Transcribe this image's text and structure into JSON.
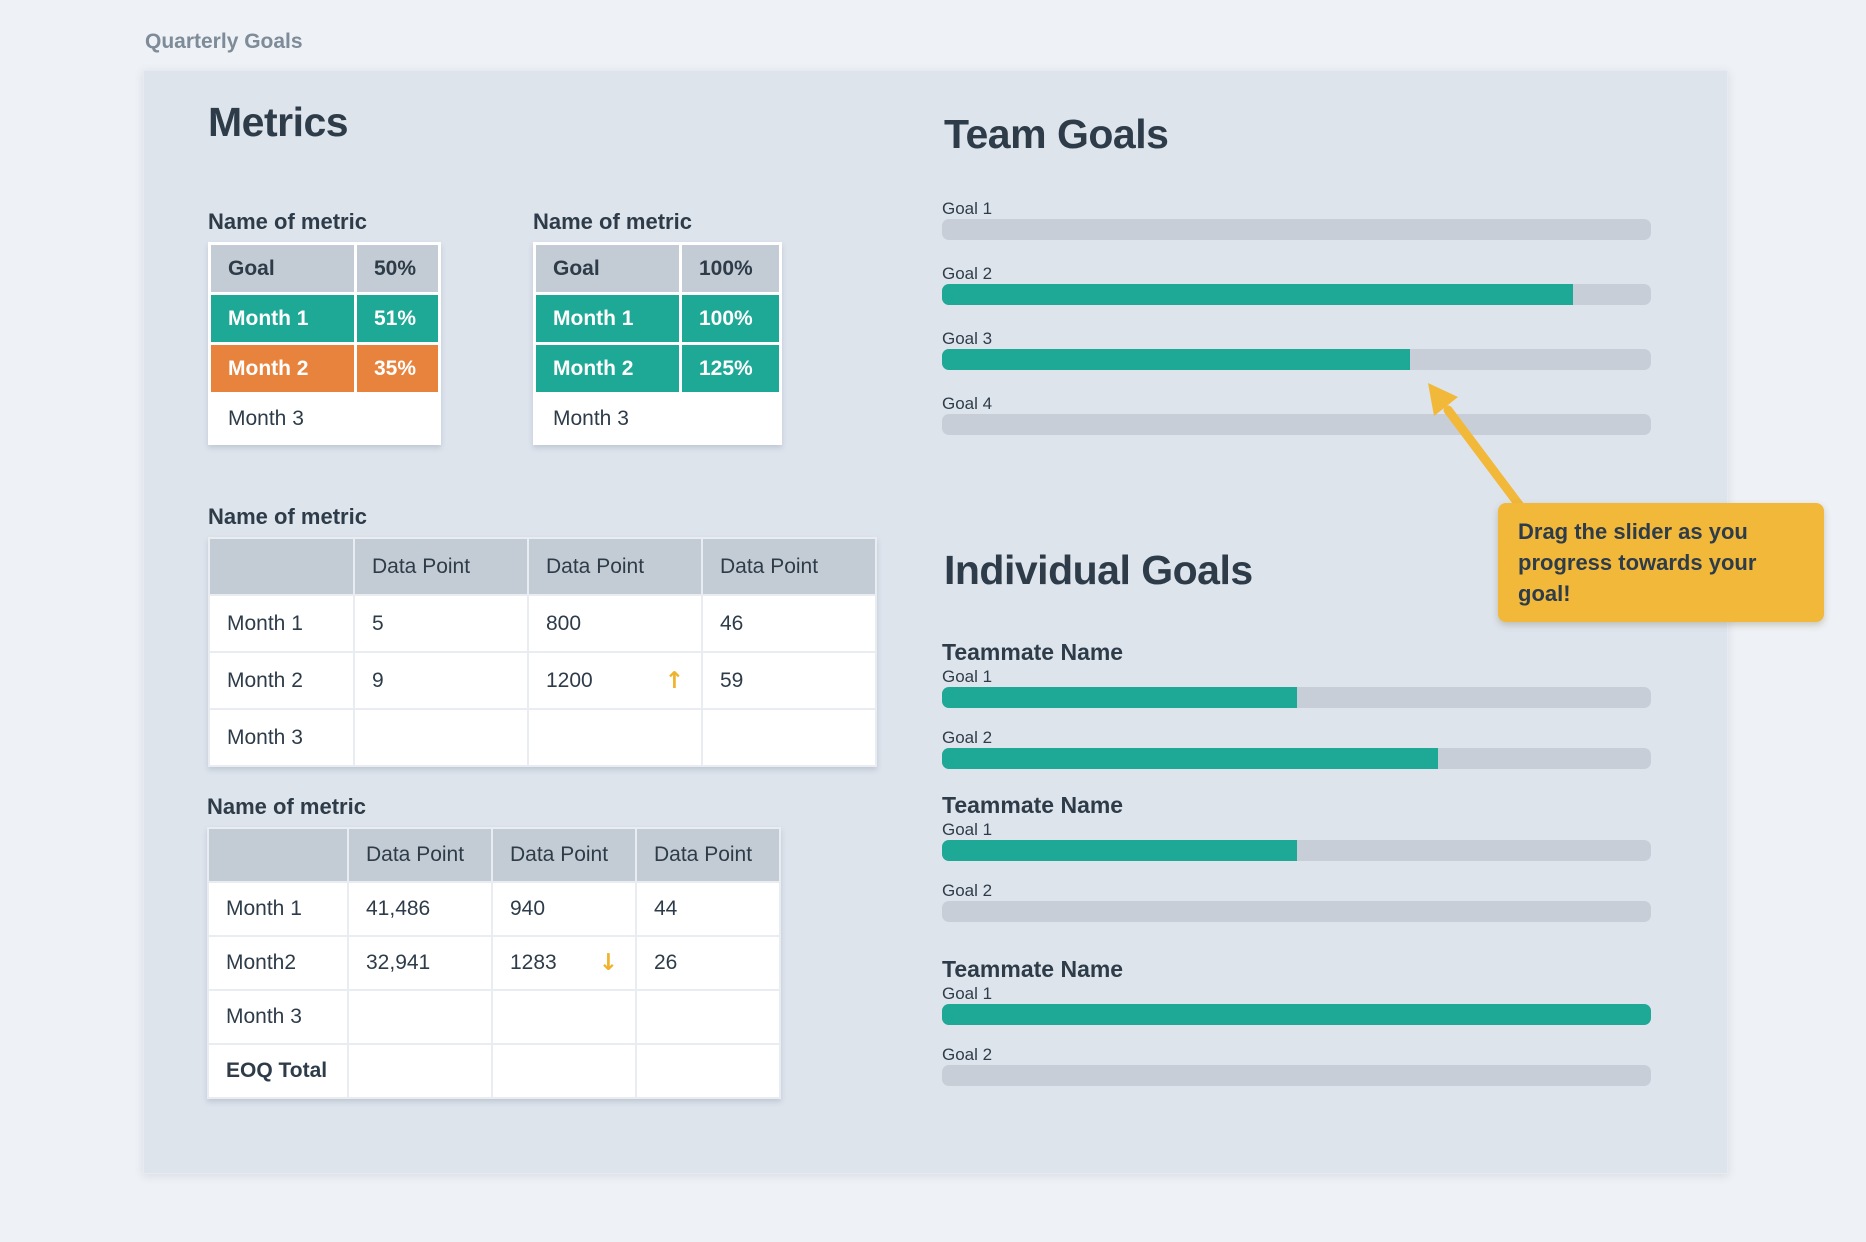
{
  "page": {
    "board_label": "Quarterly Goals"
  },
  "colors": {
    "page_bg": "#eef1f5",
    "card_bg": "#dee4ec",
    "navy_text": "#2e3c4a",
    "teal": "#1ea896",
    "orange": "#e8833e",
    "header_cell_gray": "#c3ccd4",
    "bar_track_gray": "#c7ced8",
    "annotation_yellow": "#f2b83a",
    "trend_arrow_yellow": "#f0b32c"
  },
  "metrics": {
    "heading": "Metrics",
    "goal_tables": [
      {
        "title": "Name of metric",
        "header_label": "Goal",
        "header_value": "50%",
        "rows": [
          {
            "label": "Month 1",
            "value": "51%",
            "status": "teal"
          },
          {
            "label": "Month 2",
            "value": "35%",
            "status": "orange"
          },
          {
            "label": "Month 3",
            "value": "",
            "status": "plain"
          }
        ]
      },
      {
        "title": "Name of metric",
        "header_label": "Goal",
        "header_value": "100%",
        "rows": [
          {
            "label": "Month 1",
            "value": "100%",
            "status": "teal"
          },
          {
            "label": "Month 2",
            "value": "125%",
            "status": "teal"
          },
          {
            "label": "Month 3",
            "value": "",
            "status": "plain"
          }
        ]
      }
    ],
    "data_tables": [
      {
        "title": "Name of metric",
        "columns": [
          "",
          "Data Point",
          "Data Point",
          "Data Point"
        ],
        "rows": [
          {
            "label": "Month 1",
            "values": [
              "5",
              "800",
              "46"
            ],
            "trends": [
              "",
              "",
              ""
            ],
            "bold": false
          },
          {
            "label": "Month 2",
            "values": [
              "9",
              "1200",
              "59"
            ],
            "trends": [
              "",
              "up",
              ""
            ],
            "bold": false
          },
          {
            "label": "Month 3",
            "values": [
              "",
              "",
              ""
            ],
            "trends": [
              "",
              "",
              ""
            ],
            "bold": false
          }
        ]
      },
      {
        "title": "Name of metric",
        "columns": [
          "",
          "Data Point",
          "Data Point",
          "Data Point"
        ],
        "rows": [
          {
            "label": "Month 1",
            "values": [
              "41,486",
              "940",
              "44"
            ],
            "trends": [
              "",
              "",
              ""
            ],
            "bold": false
          },
          {
            "label": "Month2",
            "values": [
              "32,941",
              "1283",
              "26"
            ],
            "trends": [
              "",
              "down",
              ""
            ],
            "bold": false
          },
          {
            "label": "Month 3",
            "values": [
              "",
              "",
              ""
            ],
            "trends": [
              "",
              "",
              ""
            ],
            "bold": false
          },
          {
            "label": "EOQ Total",
            "values": [
              "",
              "",
              ""
            ],
            "trends": [
              "",
              "",
              ""
            ],
            "bold": true
          }
        ]
      }
    ]
  },
  "team_goals": {
    "heading": "Team Goals",
    "goals": [
      {
        "label": "Goal 1",
        "progress": 0
      },
      {
        "label": "Goal 2",
        "progress": 89
      },
      {
        "label": "Goal 3",
        "progress": 66
      },
      {
        "label": "Goal 4",
        "progress": 0
      }
    ]
  },
  "individual_goals": {
    "heading": "Individual Goals",
    "teammates": [
      {
        "name": "Teammate Name",
        "goals": [
          {
            "label": "Goal 1",
            "progress": 50
          },
          {
            "label": "Goal 2",
            "progress": 70
          }
        ]
      },
      {
        "name": "Teammate Name",
        "goals": [
          {
            "label": "Goal 1",
            "progress": 50
          },
          {
            "label": "Goal 2",
            "progress": 0
          }
        ]
      },
      {
        "name": "Teammate Name",
        "goals": [
          {
            "label": "Goal 1",
            "progress": 100
          },
          {
            "label": "Goal 2",
            "progress": 0
          }
        ]
      }
    ]
  },
  "tooltip": {
    "text": "Drag the slider as you progress towards your goal!"
  },
  "icons": {
    "trend_up": "↑",
    "trend_down": "↓",
    "annotation_arrow": "arrow-up-left"
  }
}
